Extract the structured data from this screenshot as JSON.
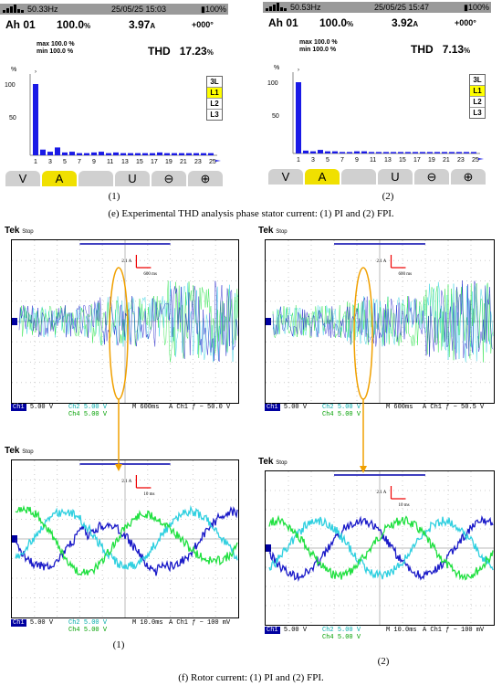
{
  "colors": {
    "bar": "#1a1ae6",
    "ch1": "#1a1ac8",
    "ch2": "#30d0e0",
    "ch4": "#20e040",
    "highlight": "#f0a000"
  },
  "thd_panels": [
    {
      "freq": "50.33Hz",
      "datetime": "25/05/25  15:03",
      "battery": "100%",
      "ah": "Ah 01",
      "pct": "100.0",
      "pct_unit": "%",
      "amp": "3.97",
      "amp_unit": "A",
      "phase": "+000°",
      "max_label": "max",
      "max_val": "100.0 %",
      "min_label": "min",
      "min_val": "100.0 %",
      "thd_label": "THD",
      "thd_val": "17.23",
      "thd_unit": "%",
      "y_unit": "%",
      "y100": "100",
      "y50": "50",
      "phases": [
        "3L",
        "L1",
        "L2",
        "L3"
      ],
      "xticks": [
        "1",
        "3",
        "5",
        "7",
        "9",
        "11",
        "13",
        "15",
        "17",
        "19",
        "21",
        "23",
        "25"
      ],
      "harmonics": [
        100,
        8,
        5,
        11,
        4,
        5,
        3,
        3,
        4,
        5,
        3,
        4,
        3,
        3,
        3,
        3,
        3,
        4,
        3,
        3,
        3,
        3,
        3,
        3,
        3
      ],
      "buttons": [
        "V",
        "A",
        "",
        "U",
        "",
        ""
      ],
      "caption": "(1)"
    },
    {
      "freq": "50.53Hz",
      "datetime": "25/05/25  15:47",
      "battery": "100%",
      "ah": "Ah 01",
      "pct": "100.0",
      "pct_unit": "%",
      "amp": "3.92",
      "amp_unit": "A",
      "phase": "+000°",
      "max_label": "max",
      "max_val": "100.0 %",
      "min_label": "min",
      "min_val": "100.0 %",
      "thd_label": "THD",
      "thd_val": "7.13",
      "thd_unit": "%",
      "y_unit": "%",
      "y100": "100",
      "y50": "50",
      "phases": [
        "3L",
        "L1",
        "L2",
        "L3"
      ],
      "xticks": [
        "1",
        "3",
        "5",
        "7",
        "9",
        "11",
        "13",
        "15",
        "17",
        "19",
        "21",
        "23",
        "25"
      ],
      "harmonics": [
        100,
        4,
        3,
        5,
        3,
        3,
        2,
        2,
        3,
        3,
        2,
        2,
        2,
        2,
        2,
        2,
        2,
        2,
        2,
        2,
        2,
        2,
        2,
        2,
        2
      ],
      "buttons": [
        "V",
        "A",
        "",
        "U",
        "",
        ""
      ],
      "caption": "(2)"
    }
  ],
  "caption_e": "(e) Experimental THD analysis phase stator current: (1) PI and (2) FPI.",
  "scopes": [
    {
      "tek": "Tek",
      "stop": "Stop",
      "scale_a": "2.1 A",
      "scale_t": "600 ms",
      "ch1": "Ch1",
      "ch1v": "5.00 V",
      "ch2": "Ch2",
      "ch2v": "5.00 V",
      "ch4": "Ch4",
      "ch4v": "5.00 V",
      "time": "M 600ms",
      "trig": "A  Ch1 ƒ − 50.0 V"
    },
    {
      "tek": "Tek",
      "stop": "Stop",
      "scale_a": "2.1 A",
      "scale_t": "600 ms",
      "ch1": "Ch1",
      "ch1v": "5.00 V",
      "ch2": "Ch2",
      "ch2v": "5.00 V",
      "ch4": "Ch4",
      "ch4v": "5.00 V",
      "time": "M 600ms",
      "trig": "A  Ch1 ƒ − 50.5 V"
    },
    {
      "tek": "Tek",
      "stop": "Stop",
      "scale_a": "2.1 A",
      "scale_t": "10 ms",
      "ch1": "Ch1",
      "ch1v": "5.00 V",
      "ch2": "Ch2",
      "ch2v": "5.00 V",
      "ch4": "Ch4",
      "ch4v": "5.00 V",
      "time": "M 10.0ms",
      "trig": "A  Ch1 ƒ − 100 mV",
      "caption": "(1)"
    },
    {
      "tek": "Tek",
      "stop": "Stop",
      "scale_a": "2.1 A",
      "scale_t": "10 ms",
      "ch1": "Ch1",
      "ch1v": "5.00 V",
      "ch2": "Ch2",
      "ch2v": "5.00 V",
      "ch4": "Ch4",
      "ch4v": "5.00 V",
      "time": "M 10.0ms",
      "trig": "A  Ch1 ƒ − 100 mV",
      "caption": "(2)"
    }
  ],
  "caption_f": "(f) Rotor current: (1) PI and (2) FPI."
}
